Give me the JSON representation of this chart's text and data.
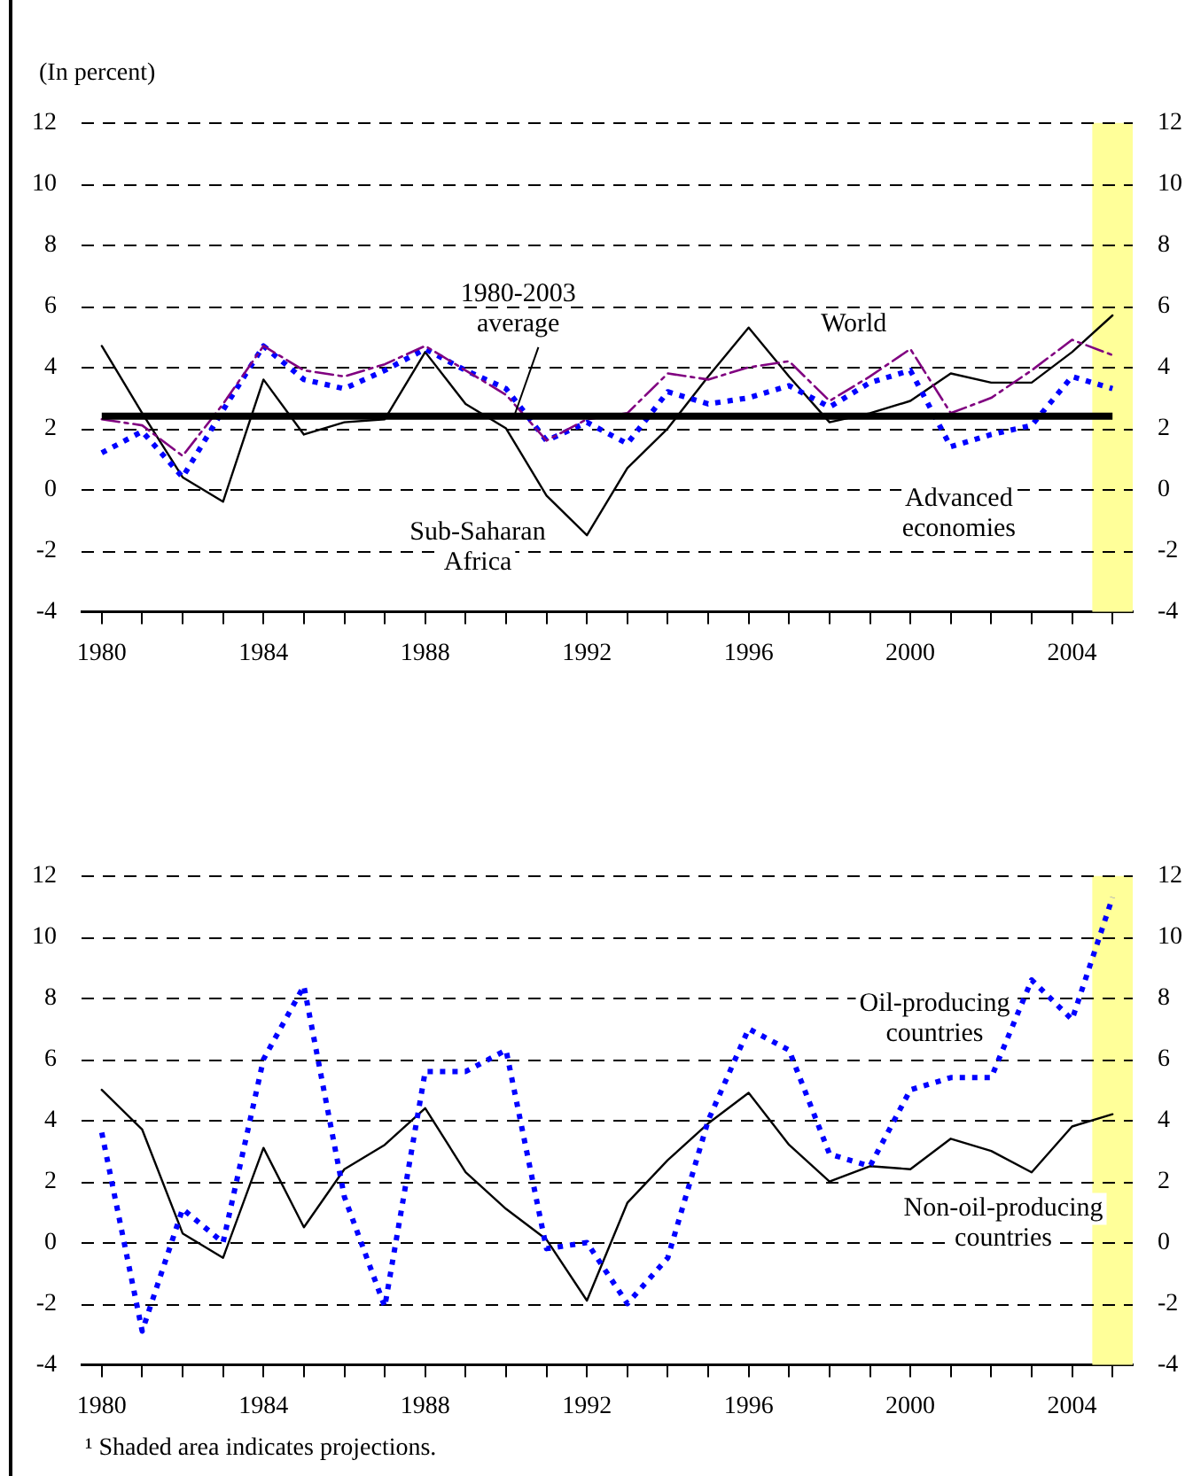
{
  "chart_data": [
    {
      "type": "line",
      "subtitle": "(In percent)",
      "x": [
        1980,
        1981,
        1982,
        1983,
        1984,
        1985,
        1986,
        1987,
        1988,
        1989,
        1990,
        1991,
        1992,
        1993,
        1994,
        1995,
        1996,
        1997,
        1998,
        1999,
        2000,
        2001,
        2002,
        2003,
        2004,
        2005
      ],
      "series": [
        {
          "name": "World",
          "color": "#800080",
          "line_style": "dashed",
          "values": [
            2.3,
            2.1,
            1.1,
            2.8,
            4.7,
            3.9,
            3.7,
            4.1,
            4.7,
            3.9,
            3.1,
            1.6,
            2.3,
            2.5,
            3.8,
            3.6,
            4.0,
            4.2,
            2.9,
            3.7,
            4.6,
            2.5,
            3.0,
            3.9,
            4.9,
            4.4
          ]
        },
        {
          "name": "Advanced economies",
          "color": "#0000ff",
          "line_style": "dotted",
          "values": [
            1.2,
            1.9,
            0.4,
            2.6,
            4.7,
            3.6,
            3.3,
            3.9,
            4.6,
            3.9,
            3.3,
            1.6,
            2.2,
            1.5,
            3.2,
            2.8,
            3.0,
            3.4,
            2.7,
            3.5,
            3.9,
            1.4,
            1.8,
            2.1,
            3.7,
            3.3
          ]
        },
        {
          "name": "Sub-Saharan Africa",
          "color": "#000000",
          "line_style": "solid",
          "values": [
            4.7,
            2.5,
            0.4,
            -0.4,
            3.6,
            1.8,
            2.2,
            2.3,
            4.5,
            2.8,
            2.0,
            -0.2,
            -1.5,
            0.7,
            2.0,
            3.7,
            5.3,
            3.7,
            2.2,
            2.5,
            2.9,
            3.8,
            3.5,
            3.5,
            4.5,
            5.7
          ]
        }
      ],
      "xlim": [
        1979.5,
        2005.5
      ],
      "xticks": [
        1980,
        {
          "value": 1981,
          "label": null
        },
        {
          "value": 1982,
          "label": null
        },
        {
          "value": 1983,
          "label": null
        },
        1984,
        {
          "value": 1985,
          "label": null
        },
        {
          "value": 1986,
          "label": null
        },
        {
          "value": 1987,
          "label": null
        },
        1988,
        {
          "value": 1989,
          "label": null
        },
        {
          "value": 1990,
          "label": null
        },
        {
          "value": 1991,
          "label": null
        },
        1992,
        {
          "value": 1993,
          "label": null
        },
        {
          "value": 1994,
          "label": null
        },
        {
          "value": 1995,
          "label": null
        },
        1996,
        {
          "value": 1997,
          "label": null
        },
        {
          "value": 1998,
          "label": null
        },
        {
          "value": 1999,
          "label": null
        },
        2000,
        {
          "value": 2001,
          "label": null
        },
        {
          "value": 2002,
          "label": null
        },
        {
          "value": 2003,
          "label": null
        },
        2004,
        {
          "value": 2005,
          "label": null
        }
      ],
      "ylim": [
        -4,
        12
      ],
      "yticks": [
        -4,
        -2,
        0,
        2,
        4,
        6,
        8,
        10,
        12
      ],
      "y2lim": [
        -4,
        12
      ],
      "y2ticks": [
        -4,
        -2,
        0,
        2,
        4,
        6,
        8,
        10,
        12
      ],
      "ref_lines": [
        {
          "axis": "y",
          "value": 2.4,
          "label": "1980-2003 average",
          "color": "#000000"
        }
      ],
      "bands": [
        {
          "axis": "x",
          "from": 2004.5,
          "to": 2005.5,
          "color": "#ffff99"
        }
      ],
      "grid": "y",
      "legend": false,
      "marker": "none"
    },
    {
      "type": "line",
      "x": [
        1980,
        1981,
        1982,
        1983,
        1984,
        1985,
        1986,
        1987,
        1988,
        1989,
        1990,
        1991,
        1992,
        1993,
        1994,
        1995,
        1996,
        1997,
        1998,
        1999,
        2000,
        2001,
        2002,
        2003,
        2004,
        2005
      ],
      "series": [
        {
          "name": "Oil-producing countries",
          "color": "#0000ff",
          "line_style": "dotted",
          "values": [
            3.6,
            -2.9,
            1.1,
            0.0,
            6.0,
            8.4,
            1.5,
            -2.1,
            5.6,
            5.6,
            6.3,
            -0.2,
            0.0,
            -2.0,
            -0.5,
            4.0,
            7.0,
            6.3,
            2.9,
            2.5,
            5.0,
            5.4,
            5.4,
            8.6,
            7.3,
            11.3
          ]
        },
        {
          "name": "Non-oil-producing countries",
          "color": "#000000",
          "line_style": "solid",
          "values": [
            5.0,
            3.7,
            0.3,
            -0.5,
            3.1,
            0.5,
            2.4,
            3.2,
            4.4,
            2.3,
            1.1,
            0.1,
            -1.9,
            1.3,
            2.7,
            3.9,
            4.9,
            3.2,
            2.0,
            2.5,
            2.4,
            3.4,
            3.0,
            2.3,
            3.8,
            4.2
          ]
        }
      ],
      "xlim": [
        1979.5,
        2005.5
      ],
      "xticks": [
        1980,
        {
          "value": 1981,
          "label": null
        },
        {
          "value": 1982,
          "label": null
        },
        {
          "value": 1983,
          "label": null
        },
        1984,
        {
          "value": 1985,
          "label": null
        },
        {
          "value": 1986,
          "label": null
        },
        {
          "value": 1987,
          "label": null
        },
        1988,
        {
          "value": 1989,
          "label": null
        },
        {
          "value": 1990,
          "label": null
        },
        {
          "value": 1991,
          "label": null
        },
        1992,
        {
          "value": 1993,
          "label": null
        },
        {
          "value": 1994,
          "label": null
        },
        {
          "value": 1995,
          "label": null
        },
        1996,
        {
          "value": 1997,
          "label": null
        },
        {
          "value": 1998,
          "label": null
        },
        {
          "value": 1999,
          "label": null
        },
        2000,
        {
          "value": 2001,
          "label": null
        },
        {
          "value": 2002,
          "label": null
        },
        {
          "value": 2003,
          "label": null
        },
        2004,
        {
          "value": 2005,
          "label": null
        }
      ],
      "ylim": [
        -4,
        12
      ],
      "yticks": [
        -4,
        -2,
        0,
        2,
        4,
        6,
        8,
        10,
        12
      ],
      "y2lim": [
        -4,
        12
      ],
      "y2ticks": [
        -4,
        -2,
        0,
        2,
        4,
        6,
        8,
        10,
        12
      ],
      "bands": [
        {
          "axis": "x",
          "from": 2004.5,
          "to": 2005.5,
          "color": "#ffff99"
        }
      ],
      "annotations": [
        "¹ Shaded area indicates projections."
      ],
      "grid": "y",
      "legend": false,
      "marker": "none"
    }
  ]
}
